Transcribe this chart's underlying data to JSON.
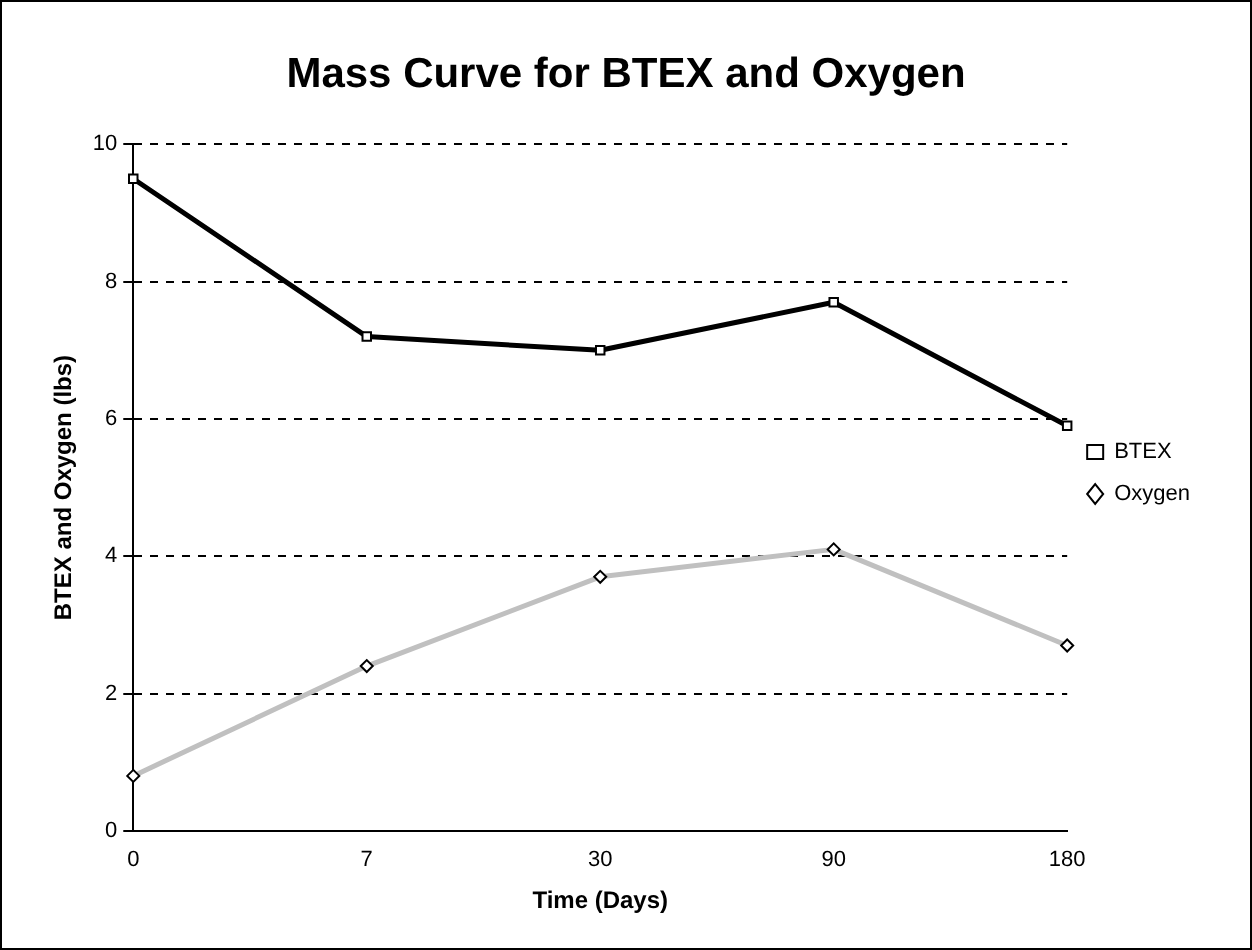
{
  "chart_data": {
    "type": "line",
    "title": "Mass Curve for BTEX and Oxygen",
    "xlabel": "Time (Days)",
    "ylabel": "BTEX and Oxygen (lbs)",
    "categories": [
      "0",
      "7",
      "30",
      "90",
      "180"
    ],
    "series": [
      {
        "name": "BTEX",
        "color": "#000000",
        "marker": "square",
        "values": [
          9.5,
          7.2,
          7.0,
          7.7,
          5.9
        ]
      },
      {
        "name": "Oxygen",
        "color": "#c0c0c0",
        "marker": "diamond",
        "values": [
          0.8,
          2.4,
          3.7,
          4.1,
          2.7
        ]
      }
    ],
    "ylim": [
      0,
      10
    ],
    "yticks": [
      0,
      2,
      4,
      6,
      8,
      10
    ],
    "grid": "y",
    "legend": "right",
    "line_style": "solid"
  }
}
